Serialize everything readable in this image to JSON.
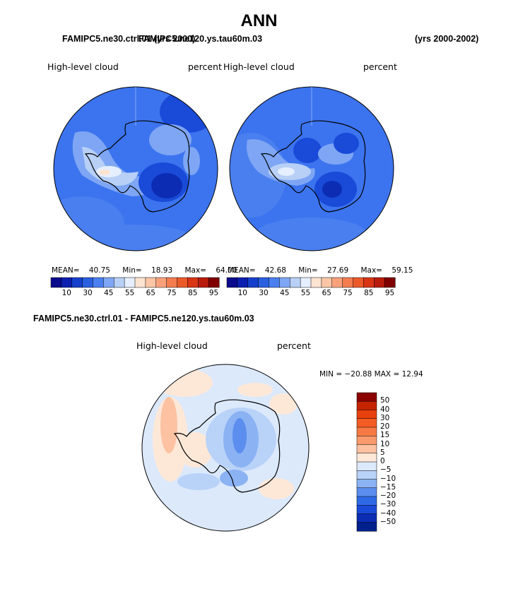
{
  "figure": {
    "title": "ANN",
    "case1_label": "FAMIPC5.ne30.ctrl.01 (yrs 2000)",
    "case2_label": "FAMIPC5.ne120.ys.tau60m.03",
    "years_label": "(yrs 2000-2002)",
    "diff_label": "FAMIPC5.ne30.ctrl.01 - FAMIPC5.ne120.ys.tau60m.03"
  },
  "panels": [
    {
      "variable": "High-level cloud",
      "units": "percent",
      "stats": {
        "mean_label": "MEAN=",
        "mean": "40.75",
        "min_label": "Min=",
        "min": "18.93",
        "max_label": "Max=",
        "max": "64.00"
      }
    },
    {
      "variable": "High-level cloud",
      "units": "percent",
      "stats": {
        "mean_label": "MEAN=",
        "mean": "42.68",
        "min_label": "Min=",
        "min": "27.69",
        "max_label": "Max=",
        "max": "59.15"
      }
    }
  ],
  "diff_panel": {
    "variable": "High-level cloud",
    "units": "percent",
    "minmax_text": "MIN = −20.88 MAX =   12.94"
  },
  "colorbar_abs": {
    "colors": [
      "#0a0a8c",
      "#0b1fb0",
      "#1540cc",
      "#2a5fe0",
      "#4a7ff0",
      "#7ea6f4",
      "#b8d0f6",
      "#e6efff",
      "#fde4d2",
      "#fbc6a6",
      "#f8a27c",
      "#f37d4f",
      "#ec5a2a",
      "#d93414",
      "#b81c0c",
      "#800000"
    ],
    "ticks": [
      "10",
      "30",
      "45",
      "55",
      "65",
      "75",
      "85",
      "95"
    ]
  },
  "colorbar_diff": {
    "colors": [
      "#8b0000",
      "#c42400",
      "#e8400c",
      "#f45c24",
      "#f77a44",
      "#f99a6c",
      "#fcc2a2",
      "#fde8d8",
      "#dbe9fb",
      "#b9d2f8",
      "#8bb2f3",
      "#5b8eee",
      "#2f6ae6",
      "#1a4ad8",
      "#0c2cb4",
      "#00208c"
    ],
    "labels": [
      "50",
      "40",
      "30",
      "20",
      "15",
      "10",
      "5",
      "0",
      "−5",
      "−10",
      "−15",
      "−20",
      "−30",
      "−40",
      "−50"
    ]
  },
  "map_colors": {
    "base_abs": "#3c74ef",
    "ocean_dark": "#2a5fe0",
    "mid": "#4a7ff0",
    "light": "#7ea6f4",
    "lighter": "#b8d0f6",
    "palest": "#e6efff",
    "peach": "#fde4d2",
    "darker": "#1a4ad8",
    "darkest": "#0c2cb4",
    "diff_base": "#dbe9fb",
    "diff_peach": "#fde8d8",
    "diff_pink": "#fcc2a2",
    "diff_light_blue": "#b9d2f8",
    "diff_mid_blue": "#8bb2f3",
    "diff_blue": "#5b8eee",
    "coast": "#000000"
  }
}
